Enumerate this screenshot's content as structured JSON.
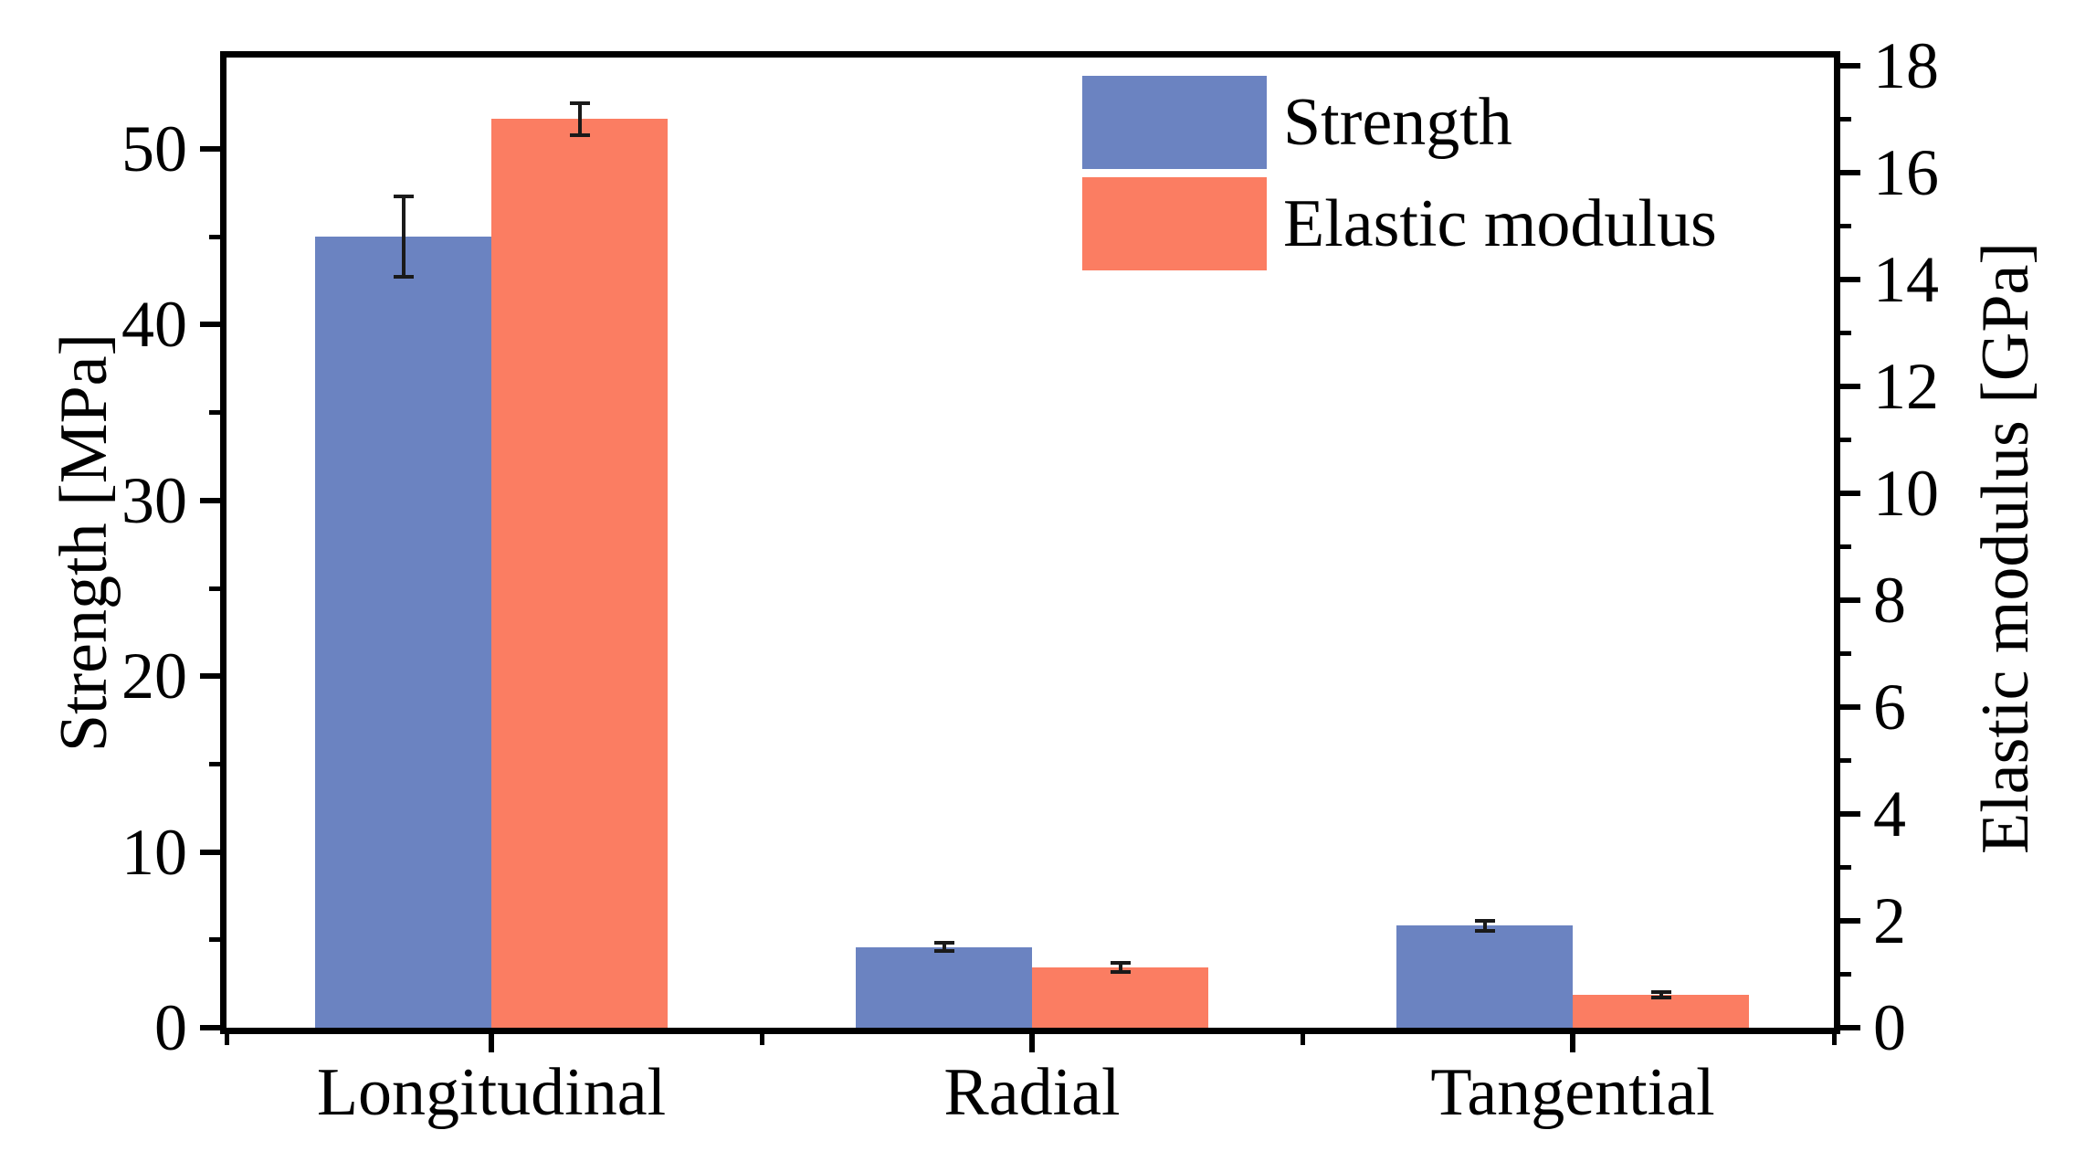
{
  "chart_data": {
    "type": "bar",
    "title": "",
    "categories": [
      "Longitudinal",
      "Radial",
      "Tangential"
    ],
    "series": [
      {
        "name": "Strength",
        "axis": "left",
        "color": "#6B83C1",
        "values": [
          45.0,
          4.6,
          5.8
        ],
        "errors": [
          2.3,
          0.25,
          0.3
        ]
      },
      {
        "name": "Elastic modulus",
        "axis": "right",
        "color": "#FB7D62",
        "values": [
          17.0,
          1.13,
          0.62
        ],
        "errors": [
          0.3,
          0.08,
          0.05
        ]
      }
    ],
    "left_axis": {
      "label": "Strength [MPa]",
      "ticks": [
        0,
        10,
        20,
        30,
        40,
        50
      ],
      "minor_step": 5,
      "ylim": [
        0,
        55.2
      ]
    },
    "right_axis": {
      "label": "Elastic modulus [GPa]",
      "ticks": [
        0,
        2,
        4,
        6,
        8,
        10,
        12,
        14,
        16,
        18
      ],
      "minor_step": 1,
      "ylim": [
        0,
        18.15
      ]
    },
    "legend": {
      "position": "top-right-inside",
      "entries": [
        "Strength",
        "Elastic modulus"
      ]
    },
    "grid": false,
    "colors": {
      "axis": "#000000",
      "error_bar": "#1a1a1a",
      "background": "#ffffff"
    }
  }
}
